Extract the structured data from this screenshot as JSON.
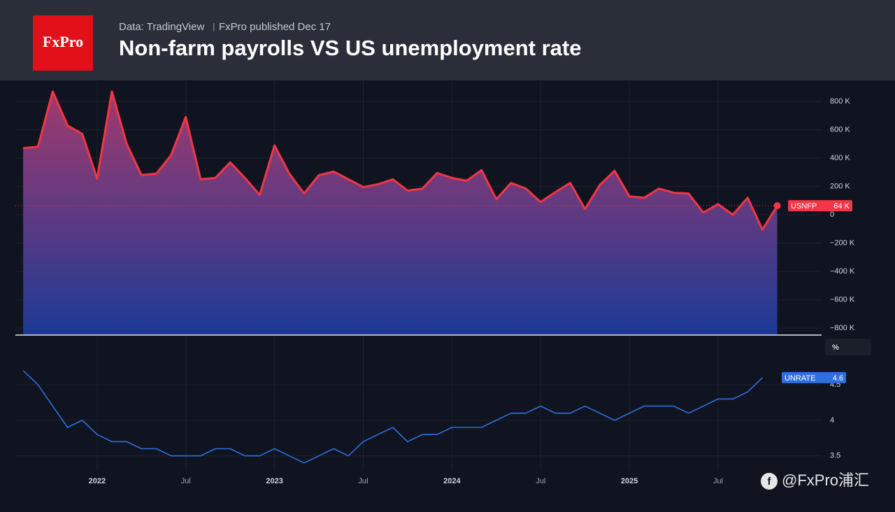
{
  "header": {
    "logo": "FxPro",
    "source": "Data: TradingView",
    "publisher": "FxPro published Dec 17",
    "title": "Non-farm payrolls VS US unemployment rate"
  },
  "watermark": "@FxPro浦汇",
  "chart_data": [
    {
      "type": "area",
      "x": [
        "2021-08",
        "2021-09",
        "2021-10",
        "2021-11",
        "2021-12",
        "2022-01",
        "2022-02",
        "2022-03",
        "2022-04",
        "2022-05",
        "2022-06",
        "2022-07",
        "2022-08",
        "2022-09",
        "2022-10",
        "2022-11",
        "2022-12",
        "2023-01",
        "2023-02",
        "2023-03",
        "2023-04",
        "2023-05",
        "2023-06",
        "2023-07",
        "2023-08",
        "2023-09",
        "2023-10",
        "2023-11",
        "2023-12",
        "2024-01",
        "2024-02",
        "2024-03",
        "2024-04",
        "2024-05",
        "2024-06",
        "2024-07",
        "2024-08",
        "2024-09",
        "2024-10",
        "2024-11",
        "2024-12",
        "2025-01",
        "2025-02",
        "2025-03",
        "2025-04",
        "2025-05",
        "2025-06",
        "2025-07",
        "2025-08",
        "2025-09",
        "2025-10",
        "2025-11"
      ],
      "series": [
        {
          "name": "USNFP",
          "color": "#f23645",
          "values": [
            470,
            480,
            870,
            630,
            570,
            255,
            870,
            500,
            280,
            290,
            420,
            690,
            250,
            260,
            370,
            260,
            140,
            490,
            290,
            150,
            280,
            305,
            250,
            195,
            215,
            250,
            170,
            185,
            295,
            260,
            240,
            315,
            110,
            225,
            185,
            90,
            160,
            225,
            40,
            210,
            310,
            130,
            120,
            185,
            155,
            150,
            15,
            75,
            0,
            120,
            -105,
            64
          ],
          "value_labels": [
            null,
            null,
            null,
            null,
            null,
            null,
            null,
            null,
            null,
            null,
            null,
            null,
            null,
            null,
            null,
            null,
            null,
            null,
            null,
            null,
            null,
            null,
            null,
            null,
            null,
            null,
            null,
            null,
            null,
            null,
            null,
            null,
            null,
            null,
            null,
            null,
            null,
            null,
            null,
            null,
            null,
            null,
            null,
            null,
            null,
            null,
            null,
            null,
            null,
            null,
            null,
            "64 K"
          ]
        }
      ],
      "xlim": [
        "2021-07",
        "2026-02"
      ],
      "ylim": [
        -844,
        948
      ],
      "yticks": [
        {
          "value": 800,
          "label": "800 K"
        },
        {
          "value": 600,
          "label": "600 K"
        },
        {
          "value": 400,
          "label": "400 K"
        },
        {
          "value": 200,
          "label": "200 K"
        },
        0,
        {
          "value": -200,
          "label": "−200 K"
        },
        {
          "value": -400,
          "label": "−400 K"
        },
        {
          "value": -600,
          "label": "−600 K"
        },
        {
          "value": -800,
          "label": "−800 K"
        }
      ],
      "grid": true
    },
    {
      "type": "line",
      "x": [
        "2021-08",
        "2021-09",
        "2021-10",
        "2021-11",
        "2021-12",
        "2022-01",
        "2022-02",
        "2022-03",
        "2022-04",
        "2022-05",
        "2022-06",
        "2022-07",
        "2022-08",
        "2022-09",
        "2022-10",
        "2022-11",
        "2022-12",
        "2023-01",
        "2023-02",
        "2023-03",
        "2023-04",
        "2023-05",
        "2023-06",
        "2023-07",
        "2023-08",
        "2023-09",
        "2023-10",
        "2023-11",
        "2023-12",
        "2024-01",
        "2024-02",
        "2024-03",
        "2024-04",
        "2024-05",
        "2024-06",
        "2024-07",
        "2024-08",
        "2024-09",
        "2024-10",
        "2024-11",
        "2024-12",
        "2025-01",
        "2025-02",
        "2025-03",
        "2025-04",
        "2025-05",
        "2025-06",
        "2025-07",
        "2025-08",
        "2025-09",
        "2025-10"
      ],
      "series": [
        {
          "name": "UNRATE",
          "color": "#2f6fe0",
          "values": [
            4.7,
            4.5,
            4.2,
            3.9,
            4.0,
            3.8,
            3.7,
            3.7,
            3.6,
            3.6,
            3.5,
            3.5,
            3.5,
            3.6,
            3.6,
            3.5,
            3.5,
            3.6,
            3.5,
            3.4,
            3.5,
            3.6,
            3.5,
            3.7,
            3.8,
            3.9,
            3.7,
            3.8,
            3.8,
            3.9,
            3.9,
            3.9,
            4.0,
            4.1,
            4.1,
            4.2,
            4.1,
            4.1,
            4.2,
            4.1,
            4.0,
            4.1,
            4.2,
            4.2,
            4.2,
            4.1,
            4.2,
            4.3,
            4.3,
            4.4,
            4.6
          ]
        }
      ],
      "unit": "%",
      "xlim": [
        "2021-07",
        "2026-02"
      ],
      "xticks": [
        {
          "value": "2022-01",
          "label": "2022"
        },
        {
          "value": "2022-07",
          "label": "Jul"
        },
        {
          "value": "2023-01",
          "label": "2023"
        },
        {
          "value": "2023-07",
          "label": "Jul"
        },
        {
          "value": "2024-01",
          "label": "2024"
        },
        {
          "value": "2024-07",
          "label": "Jul"
        },
        {
          "value": "2025-01",
          "label": "2025"
        },
        {
          "value": "2025-07",
          "label": "Jul"
        }
      ],
      "ylim": [
        3.3,
        5.19
      ],
      "yticks": [
        3.5,
        4,
        4.5
      ],
      "grid": true
    }
  ]
}
